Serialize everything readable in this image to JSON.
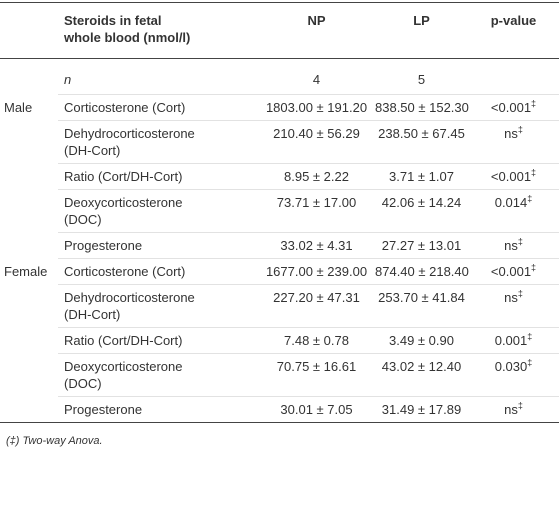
{
  "table": {
    "header": {
      "steroid": "Steroids in fetal whole blood (nmol/l)",
      "np": "NP",
      "lp": "LP",
      "p": "p-value"
    },
    "n_row": {
      "label": "n",
      "np": "4",
      "lp": "5"
    },
    "groups": [
      {
        "label": "Male",
        "rows": [
          {
            "steroid": "Corticosterone (Cort)",
            "np": "1803.00 ± 191.20",
            "lp": "838.50 ± 152.30",
            "p": "<0.001",
            "mark": "‡"
          },
          {
            "steroid": "Dehydrocorticosterone (DH-Cort)",
            "np": "210.40 ± 56.29",
            "lp": "238.50 ± 67.45",
            "p": "ns",
            "mark": "‡"
          },
          {
            "steroid": "Ratio (Cort/DH-Cort)",
            "np": "8.95 ± 2.22",
            "lp": "3.71 ± 1.07",
            "p": "<0.001",
            "mark": "‡"
          },
          {
            "steroid": "Deoxycorticosterone (DOC)",
            "np": "73.71 ± 17.00",
            "lp": "42.06 ± 14.24",
            "p": "0.014",
            "mark": "‡"
          },
          {
            "steroid": "Progesterone",
            "np": "33.02 ± 4.31",
            "lp": "27.27 ± 13.01",
            "p": "ns",
            "mark": "‡"
          }
        ]
      },
      {
        "label": "Female",
        "rows": [
          {
            "steroid": "Corticosterone (Cort)",
            "np": "1677.00 ± 239.00",
            "lp": "874.40 ± 218.40",
            "p": "<0.001",
            "mark": "‡"
          },
          {
            "steroid": "Dehydrocorticosterone (DH-Cort)",
            "np": "227.20 ± 47.31",
            "lp": "253.70 ± 41.84",
            "p": "ns",
            "mark": "‡"
          },
          {
            "steroid": "Ratio (Cort/DH-Cort)",
            "np": "7.48 ± 0.78",
            "lp": "3.49 ± 0.90",
            "p": "0.001",
            "mark": "‡"
          },
          {
            "steroid": "Deoxycorticosterone (DOC)",
            "np": "70.75 ± 16.61",
            "lp": "43.02 ± 12.40",
            "p": "0.030",
            "mark": "‡"
          },
          {
            "steroid": "Progesterone",
            "np": "30.01 ± 7.05",
            "lp": "31.49 ± 17.89",
            "p": "ns",
            "mark": "‡"
          }
        ]
      }
    ],
    "footnote": "(‡) Two-way Anova."
  }
}
